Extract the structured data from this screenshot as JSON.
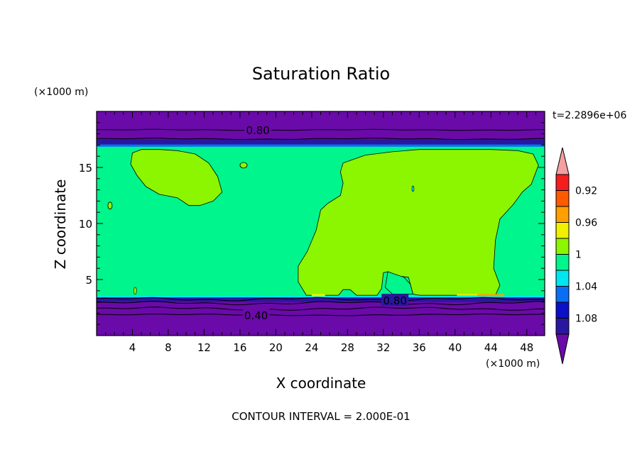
{
  "chart_data": {
    "type": "heatmap",
    "title": "Saturation Ratio",
    "xlabel": "X coordinate",
    "ylabel": "Z coordinate",
    "x_unit": "(×1000 m)",
    "y_unit": "(×1000 m)",
    "time_label": "t=2.2896e+06",
    "footer": "CONTOUR INTERVAL = 2.000E-01",
    "xlim": [
      0,
      50
    ],
    "ylim": [
      0,
      20
    ],
    "x_ticks": [
      4,
      8,
      12,
      16,
      20,
      24,
      28,
      32,
      36,
      40,
      44,
      48
    ],
    "y_ticks": [
      5,
      10,
      15
    ],
    "colorbar": {
      "levels": [
        0.92,
        0.96,
        1,
        1.04,
        1.08
      ],
      "level_labels": [
        "0.92",
        "0.96",
        "1",
        "1.04",
        "1.08"
      ],
      "colors": [
        "#6a0aa8",
        "#2a17a0",
        "#0a10c8",
        "#0a6ef5",
        "#00e6f0",
        "#00f58c",
        "#8cf500",
        "#f0f000",
        "#ffa000",
        "#ff5a00",
        "#f51e1e",
        "#f5a0a0"
      ]
    },
    "contour_labels": [
      {
        "text": "0.80",
        "x": 18.0,
        "z": 18.35
      },
      {
        "text": "0.80",
        "x": 33.3,
        "z": 3.15
      },
      {
        "text": "0.40",
        "x": 17.8,
        "z": 1.85
      }
    ],
    "regions": {
      "background": 0.98,
      "top_layer": {
        "z_from": 17.5,
        "value": 0.7
      },
      "bottom_layer": {
        "z_to": 3.4,
        "value": 0.6
      },
      "moist_patches": [
        {
          "name": "left-upper-patch",
          "value": 1.0
        },
        {
          "name": "right-large-patch",
          "value": 1.0
        }
      ]
    }
  }
}
